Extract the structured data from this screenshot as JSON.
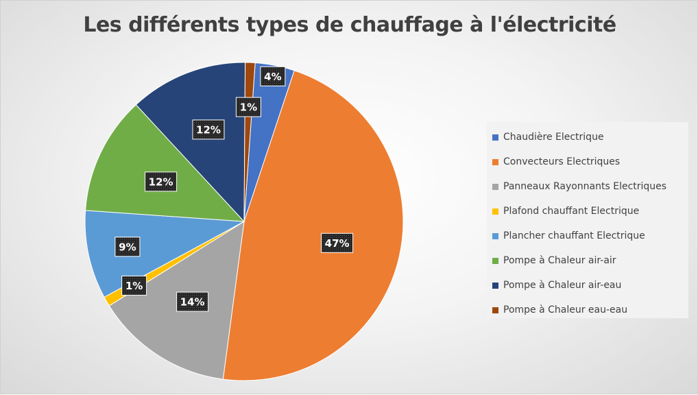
{
  "chart_data": {
    "type": "pie",
    "title": "Les différents types de chauffage à l'électricité",
    "legend_position": "right",
    "slices": [
      {
        "name": "Chaudière Electrique",
        "value": 4,
        "label": "4%",
        "color": "#4472c4"
      },
      {
        "name": "Convecteurs Electriques",
        "value": 47,
        "label": "47%",
        "color": "#ed7d31"
      },
      {
        "name": "Panneaux Rayonnants Electriques",
        "value": 14,
        "label": "14%",
        "color": "#a5a5a5"
      },
      {
        "name": "Plafond chauffant Electrique",
        "value": 1,
        "label": "1%",
        "color": "#ffc000"
      },
      {
        "name": "Plancher chauffant Electrique",
        "value": 9,
        "label": "9%",
        "color": "#5b9bd5"
      },
      {
        "name": "Pompe à Chaleur air-air",
        "value": 12,
        "label": "12%",
        "color": "#70ad47"
      },
      {
        "name": "Pompe à Chaleur air-eau",
        "value": 12,
        "label": "12%",
        "color": "#264478"
      },
      {
        "name": "Pompe à Chaleur eau-eau",
        "value": 1,
        "label": "1%",
        "color": "#9e480e"
      }
    ]
  }
}
